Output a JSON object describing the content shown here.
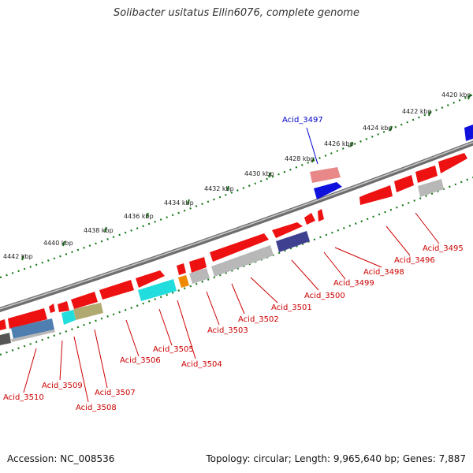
{
  "title": "Solibacter usitatus Ellin6076, complete genome",
  "footer": {
    "accession": "Accession: NC_008536",
    "summary": "Topology: circular; Length: 9,965,640 bp; Genes: 7,887"
  },
  "ruler_labels": [
    "4420 kbp",
    "4422 kbp",
    "4424 kbp",
    "4426 kbp",
    "4428 kbp",
    "4430 kbp",
    "4432 kbp",
    "4434 kbp",
    "4436 kbp",
    "4438 kbp",
    "4440 kbp",
    "4442 kbp"
  ],
  "highlight_gene": "Acid_3497",
  "gene_labels": [
    "Acid_3495",
    "Acid_3496",
    "Acid_3498",
    "Acid_3499",
    "Acid_3500",
    "Acid_3501",
    "Acid_3502",
    "Acid_3503",
    "Acid_3504",
    "Acid_3505",
    "Acid_3506",
    "Acid_3507",
    "Acid_3508",
    "Acid_3509",
    "Acid_3510"
  ],
  "colors": {
    "gene_red": "#ee1111",
    "gene_blue": "#1111dd",
    "gene_pink": "#e88888",
    "gene_grey": "#b8b8b8",
    "gene_navy": "#404090",
    "gene_cyan": "#22dddd",
    "gene_orange": "#f08800",
    "gene_steelblue": "#4f7fb0",
    "gene_olive": "#b0aa70",
    "label_red": "#cc0000",
    "label_blue": "#0000cc",
    "tick_green": "#1a7a1a",
    "backbone": "#8a8a8a"
  }
}
